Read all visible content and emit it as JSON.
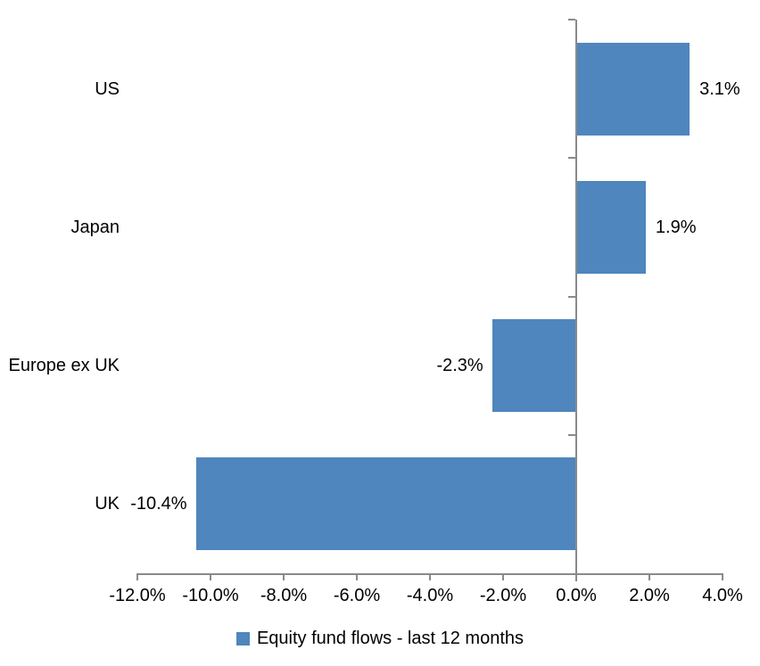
{
  "chart_data": {
    "type": "bar",
    "orientation": "horizontal",
    "title": "",
    "xlabel": "",
    "ylabel": "",
    "grid": false,
    "legend_position": "bottom",
    "series_name": "Equity fund flows - last 12 months",
    "categories": [
      "US",
      "Japan",
      "Europe ex UK",
      "UK"
    ],
    "values": [
      3.1,
      1.9,
      -2.3,
      -10.4
    ],
    "data_labels": [
      "3.1%",
      "1.9%",
      "-2.3%",
      "-10.4%"
    ],
    "xlim": [
      -12,
      4
    ],
    "x_tick_values": [
      -12,
      -10,
      -8,
      -6,
      -4,
      -2,
      0,
      2,
      4
    ],
    "x_tick_labels": [
      "-12.0%",
      "-10.0%",
      "-8.0%",
      "-6.0%",
      "-4.0%",
      "-2.0%",
      "0.0%",
      "2.0%",
      "4.0%"
    ],
    "colors": {
      "bar": "#4E86BD",
      "axis": "#8A8A8A",
      "text": "#000000",
      "background": "#FFFFFF"
    }
  }
}
